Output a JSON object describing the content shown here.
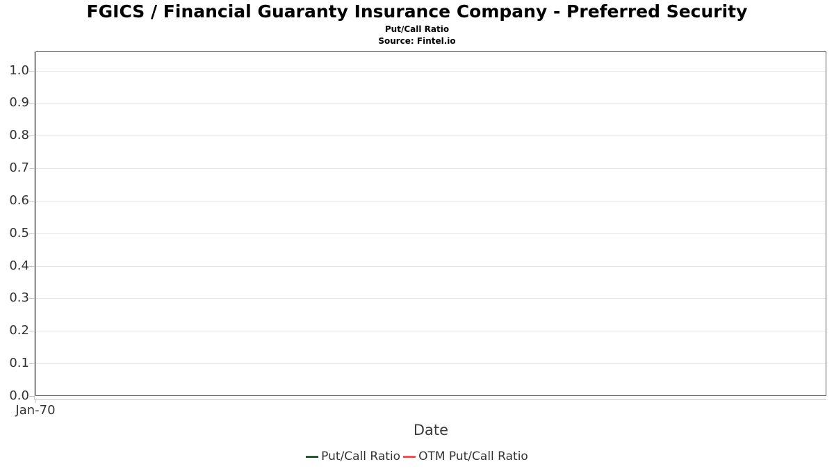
{
  "chart_data": {
    "type": "line",
    "title": "FGICS / Financial Guaranty Insurance Company - Preferred Security",
    "subtitle": "Put/Call Ratio",
    "source": "Source: Fintel.io",
    "xlabel": "Date",
    "x_tick_labels": [
      "Jan-70"
    ],
    "y_tick_labels": [
      "0.0",
      "0.1",
      "0.2",
      "0.3",
      "0.4",
      "0.5",
      "0.6",
      "0.7",
      "0.8",
      "0.9",
      "1.0"
    ],
    "ylim": [
      0.0,
      1.06
    ],
    "grid": true,
    "legend_position": "bottom-center",
    "series": [
      {
        "name": "Put/Call Ratio",
        "color": "#275937",
        "x": [],
        "values": []
      },
      {
        "name": "OTM Put/Call Ratio",
        "color": "#f8504f",
        "x": [],
        "values": []
      }
    ],
    "colors": {
      "title": "#000000",
      "gridline": "#e6e6e6",
      "plot_border": "#545454",
      "axis_line": "#c6c6c6",
      "tick": "#c6c6c6",
      "tick_label": "#333333"
    }
  }
}
